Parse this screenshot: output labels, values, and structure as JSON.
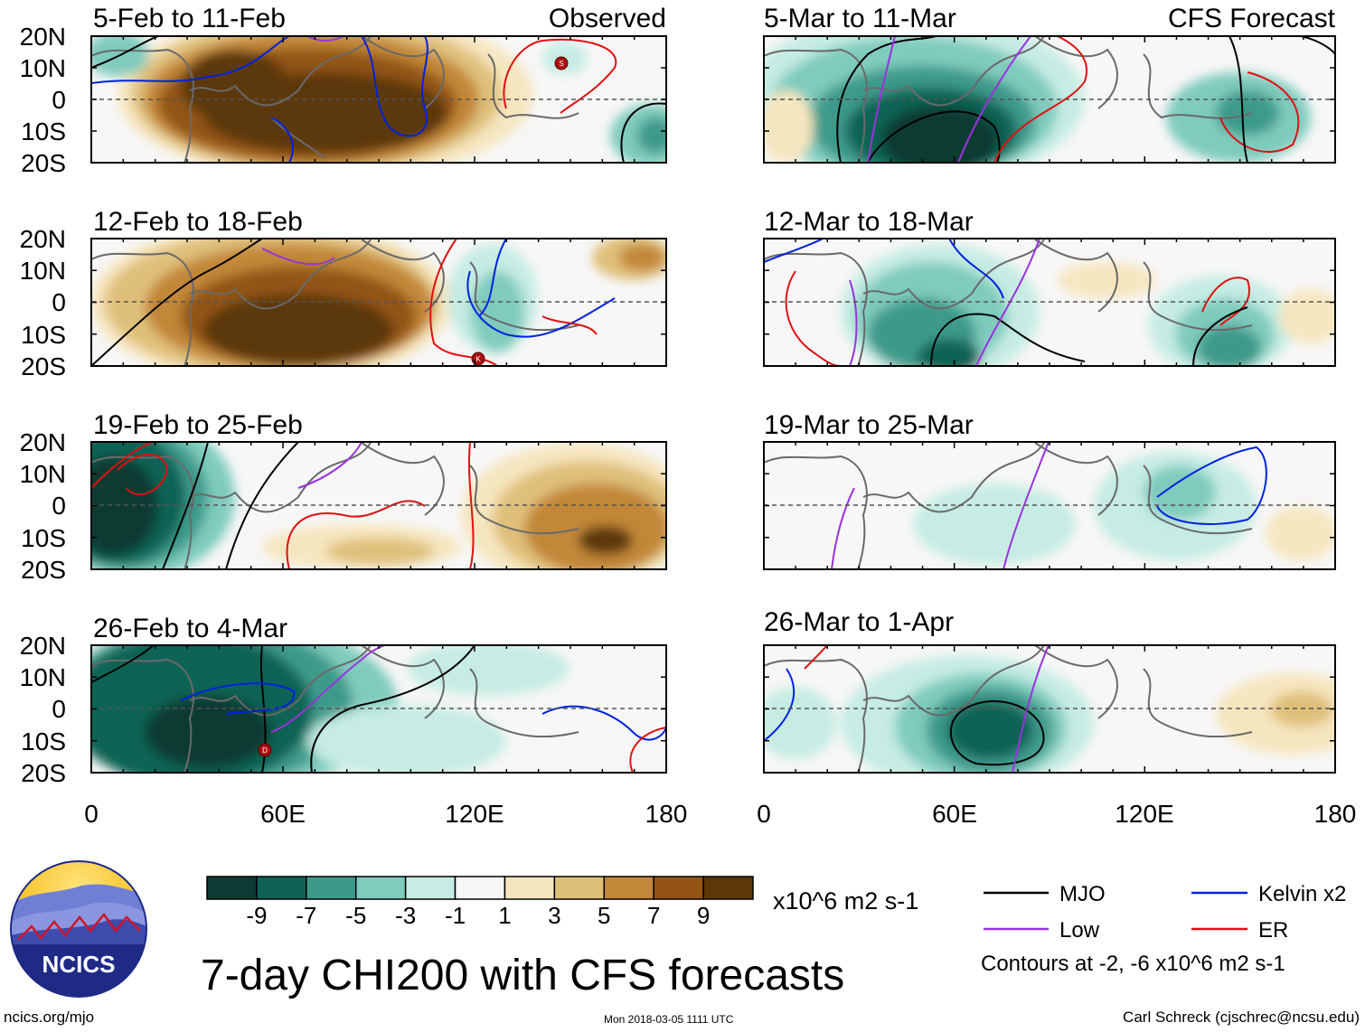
{
  "chart_data": {
    "type": "heatmap",
    "title": "7-day CHI200 with CFS forecasts",
    "units": "x10^6 m2 s-1",
    "column_headers": [
      "Observed",
      "CFS Forecast"
    ],
    "x_ticks": [
      "0",
      "60E",
      "120E",
      "180"
    ],
    "y_ticks": [
      "20N",
      "10N",
      "0",
      "10S",
      "20S"
    ],
    "xlim": [
      0,
      180
    ],
    "ylim": [
      -20,
      20
    ],
    "colorbar": {
      "ticks": [
        "-9",
        "-7",
        "-5",
        "-3",
        "-1",
        "1",
        "3",
        "5",
        "7",
        "9"
      ],
      "colors": [
        "#0c3b33",
        "#0f6355",
        "#3d9a8b",
        "#7fcbbd",
        "#c6ece3",
        "#f7f7f7",
        "#f6e6bf",
        "#dfc07a",
        "#c28739",
        "#935416",
        "#5b3709"
      ]
    },
    "legend": [
      {
        "name": "MJO",
        "color": "#000000"
      },
      {
        "name": "Kelvin x2",
        "color": "#0022dd"
      },
      {
        "name": "Low",
        "color": "#9933dd"
      },
      {
        "name": "ER",
        "color": "#e01010"
      }
    ],
    "contour_note": "Contours at -2, -6 x10^6 m2 s-1",
    "panels": [
      {
        "period": "5-Feb to 11-Feb",
        "column": "Observed"
      },
      {
        "period": "12-Feb to 18-Feb",
        "column": "Observed"
      },
      {
        "period": "19-Feb to 25-Feb",
        "column": "Observed"
      },
      {
        "period": "26-Feb to 4-Mar",
        "column": "Observed"
      },
      {
        "period": "5-Mar to 11-Mar",
        "column": "CFS Forecast"
      },
      {
        "period": "12-Mar to 18-Mar",
        "column": "CFS Forecast"
      },
      {
        "period": "19-Mar to 25-Mar",
        "column": "CFS Forecast"
      },
      {
        "period": "26-Mar to 1-Apr",
        "column": "CFS Forecast"
      }
    ],
    "storm_markers": [
      "S",
      "K",
      "D"
    ]
  },
  "logo": {
    "text": "NCICS"
  },
  "footer": {
    "url": "ncics.org/mjo",
    "timestamp": "Mon 2018-03-05 1111 UTC",
    "credit": "Carl Schreck (cjschrec@ncsu.edu)"
  }
}
